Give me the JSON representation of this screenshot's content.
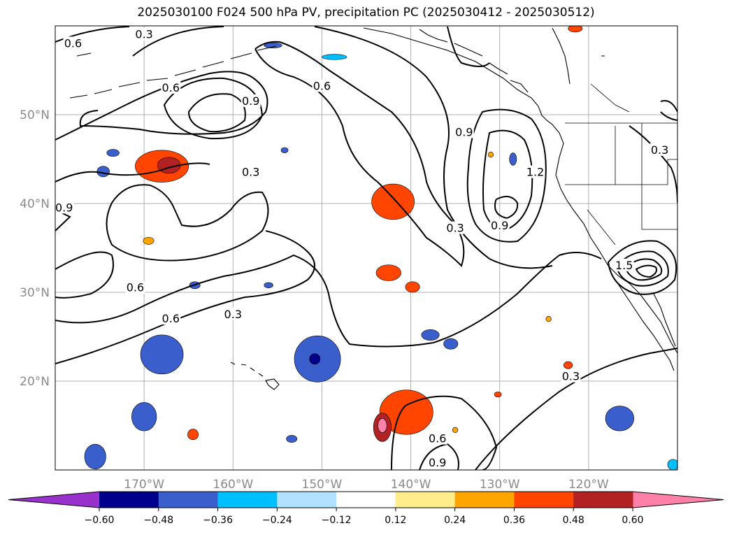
{
  "title": "2025030100 F024 500 hPa PV, precipitation PC (2025030412 - 2025030512)",
  "map": {
    "projection": "PlateCarree",
    "lon_range": [
      -180,
      -110
    ],
    "lat_range": [
      10,
      60
    ],
    "gridlines": true,
    "coastlines": true,
    "lon_ticks": [
      {
        "lon": -170,
        "label": "170°W"
      },
      {
        "lon": -160,
        "label": "160°W"
      },
      {
        "lon": -150,
        "label": "150°W"
      },
      {
        "lon": -140,
        "label": "140°W"
      },
      {
        "lon": -130,
        "label": "130°W"
      },
      {
        "lon": -120,
        "label": "120°W"
      }
    ],
    "lat_ticks": [
      {
        "lat": 50,
        "label": "50°N"
      },
      {
        "lat": 40,
        "label": "40°N"
      },
      {
        "lat": 30,
        "label": "30°N"
      },
      {
        "lat": 20,
        "label": "20°N"
      }
    ],
    "contour_labels": [
      {
        "text": "0.6",
        "lon": -178,
        "lat": 58.0
      },
      {
        "text": "0.3",
        "lon": -170,
        "lat": 59.0
      },
      {
        "text": "0.6",
        "lon": -167,
        "lat": 53.0
      },
      {
        "text": "0.6",
        "lon": -150,
        "lat": 53.2
      },
      {
        "text": "0.9",
        "lon": -158,
        "lat": 51.5
      },
      {
        "text": "0.9",
        "lon": -179,
        "lat": 39.5
      },
      {
        "text": "0.3",
        "lon": -158,
        "lat": 43.5
      },
      {
        "text": "0.9",
        "lon": -134,
        "lat": 48.0
      },
      {
        "text": "1.2",
        "lon": -126,
        "lat": 43.5
      },
      {
        "text": "0.3",
        "lon": -135,
        "lat": 37.2
      },
      {
        "text": "0.9",
        "lon": -130,
        "lat": 37.5
      },
      {
        "text": "0.3",
        "lon": -112,
        "lat": 46.0
      },
      {
        "text": "1.5",
        "lon": -116,
        "lat": 33.0
      },
      {
        "text": "0.6",
        "lon": -171,
        "lat": 30.5
      },
      {
        "text": "0.6",
        "lon": -167,
        "lat": 27.0
      },
      {
        "text": "0.3",
        "lon": -160,
        "lat": 27.5
      },
      {
        "text": "0.6",
        "lon": -137,
        "lat": 13.5
      },
      {
        "text": "0.9",
        "lon": -137,
        "lat": 10.8
      },
      {
        "text": "0.3",
        "lon": -122,
        "lat": 20.5
      }
    ],
    "precip_blobs": [
      {
        "lon": -168,
        "lat": 44.2,
        "rx": 3.0,
        "ry": 1.8,
        "color": "#ff4500"
      },
      {
        "lon": -167.2,
        "lat": 44.3,
        "rx": 1.3,
        "ry": 0.9,
        "color": "#b22222"
      },
      {
        "lon": -142,
        "lat": 40.2,
        "rx": 2.4,
        "ry": 2.0,
        "color": "#ff4500"
      },
      {
        "lon": -142.5,
        "lat": 32.2,
        "rx": 1.4,
        "ry": 0.9,
        "color": "#ff4500"
      },
      {
        "lon": -139.8,
        "lat": 30.6,
        "rx": 0.8,
        "ry": 0.6,
        "color": "#ff4500"
      },
      {
        "lon": -140.5,
        "lat": 16.5,
        "rx": 3.0,
        "ry": 2.5,
        "color": "#ff4500"
      },
      {
        "lon": -143.2,
        "lat": 14.8,
        "rx": 1.0,
        "ry": 1.6,
        "color": "#b22222"
      },
      {
        "lon": -143.2,
        "lat": 15.0,
        "rx": 0.5,
        "ry": 0.8,
        "color": "#ff80a8"
      },
      {
        "lon": -164.5,
        "lat": 14.0,
        "rx": 0.6,
        "ry": 0.6,
        "color": "#ff4500"
      },
      {
        "lon": -169.5,
        "lat": 35.8,
        "rx": 0.6,
        "ry": 0.4,
        "color": "#ffa500"
      },
      {
        "lon": -131,
        "lat": 45.5,
        "rx": 0.3,
        "ry": 0.3,
        "color": "#ffa500"
      },
      {
        "lon": -124.5,
        "lat": 27.0,
        "rx": 0.3,
        "ry": 0.3,
        "color": "#ffa500"
      },
      {
        "lon": -122.3,
        "lat": 21.8,
        "rx": 0.5,
        "ry": 0.4,
        "color": "#ff4500"
      },
      {
        "lon": -130.2,
        "lat": 18.5,
        "rx": 0.4,
        "ry": 0.3,
        "color": "#ff4500"
      },
      {
        "lon": -135.0,
        "lat": 14.5,
        "rx": 0.3,
        "ry": 0.3,
        "color": "#ffa500"
      },
      {
        "lon": -121.5,
        "lat": 59.7,
        "rx": 0.8,
        "ry": 0.4,
        "color": "#ff4500"
      },
      {
        "lon": -168.0,
        "lat": 23.0,
        "rx": 2.4,
        "ry": 2.2,
        "color": "#3a5fcd"
      },
      {
        "lon": -170,
        "lat": 16.0,
        "rx": 1.4,
        "ry": 1.6,
        "color": "#3a5fcd"
      },
      {
        "lon": -175.5,
        "lat": 11.5,
        "rx": 1.2,
        "ry": 1.4,
        "color": "#3a5fcd"
      },
      {
        "lon": -150.5,
        "lat": 22.5,
        "rx": 2.6,
        "ry": 2.6,
        "color": "#3a5fcd"
      },
      {
        "lon": -150.8,
        "lat": 22.5,
        "rx": 0.6,
        "ry": 0.6,
        "color": "#00008b"
      },
      {
        "lon": -137.8,
        "lat": 25.2,
        "rx": 1.0,
        "ry": 0.6,
        "color": "#3a5fcd"
      },
      {
        "lon": -135.5,
        "lat": 24.2,
        "rx": 0.8,
        "ry": 0.6,
        "color": "#3a5fcd"
      },
      {
        "lon": -116.5,
        "lat": 15.8,
        "rx": 1.6,
        "ry": 1.4,
        "color": "#3a5fcd"
      },
      {
        "lon": -174.6,
        "lat": 43.6,
        "rx": 0.7,
        "ry": 0.6,
        "color": "#3a5fcd"
      },
      {
        "lon": -173.5,
        "lat": 45.7,
        "rx": 0.7,
        "ry": 0.4,
        "color": "#3a5fcd"
      },
      {
        "lon": -164.3,
        "lat": 30.8,
        "rx": 0.6,
        "ry": 0.4,
        "color": "#3a5fcd"
      },
      {
        "lon": -156.0,
        "lat": 30.8,
        "rx": 0.5,
        "ry": 0.3,
        "color": "#3a5fcd"
      },
      {
        "lon": -154.2,
        "lat": 46.0,
        "rx": 0.4,
        "ry": 0.3,
        "color": "#3a5fcd"
      },
      {
        "lon": -128.5,
        "lat": 45.0,
        "rx": 0.4,
        "ry": 0.7,
        "color": "#3a5fcd"
      },
      {
        "lon": -155.5,
        "lat": 57.8,
        "rx": 1.0,
        "ry": 0.3,
        "color": "#3a5fcd"
      },
      {
        "lon": -148.6,
        "lat": 56.5,
        "rx": 1.4,
        "ry": 0.3,
        "color": "#00bfff"
      },
      {
        "lon": -153.4,
        "lat": 13.5,
        "rx": 0.6,
        "ry": 0.4,
        "color": "#3a5fcd"
      },
      {
        "lon": -110.5,
        "lat": 10.6,
        "rx": 0.6,
        "ry": 0.6,
        "color": "#00bfff"
      }
    ]
  },
  "colorbar": {
    "extend": "both",
    "bins": [
      {
        "lo": -0.72,
        "hi": -0.6,
        "color": "#9932cc"
      },
      {
        "lo": -0.6,
        "hi": -0.48,
        "color": "#00008b"
      },
      {
        "lo": -0.48,
        "hi": -0.36,
        "color": "#3a5fcd"
      },
      {
        "lo": -0.36,
        "hi": -0.24,
        "color": "#00bfff"
      },
      {
        "lo": -0.24,
        "hi": -0.12,
        "color": "#b0e2ff"
      },
      {
        "lo": -0.12,
        "hi": 0.12,
        "color": "#ffffff"
      },
      {
        "lo": 0.12,
        "hi": 0.24,
        "color": "#ffec8b"
      },
      {
        "lo": 0.24,
        "hi": 0.36,
        "color": "#ffa500"
      },
      {
        "lo": 0.36,
        "hi": 0.48,
        "color": "#ff4500"
      },
      {
        "lo": 0.48,
        "hi": 0.6,
        "color": "#b22222"
      },
      {
        "lo": 0.6,
        "hi": 0.72,
        "color": "#ff80a8"
      }
    ],
    "ticks": [
      {
        "value": -0.6,
        "label": "−0.60"
      },
      {
        "value": -0.48,
        "label": "−0.48"
      },
      {
        "value": -0.36,
        "label": "−0.36"
      },
      {
        "value": -0.24,
        "label": "−0.24"
      },
      {
        "value": -0.12,
        "label": "−0.12"
      },
      {
        "value": 0.12,
        "label": "0.12"
      },
      {
        "value": 0.24,
        "label": "0.24"
      },
      {
        "value": 0.36,
        "label": "0.36"
      },
      {
        "value": 0.48,
        "label": "0.48"
      },
      {
        "value": 0.6,
        "label": "0.60"
      }
    ]
  }
}
